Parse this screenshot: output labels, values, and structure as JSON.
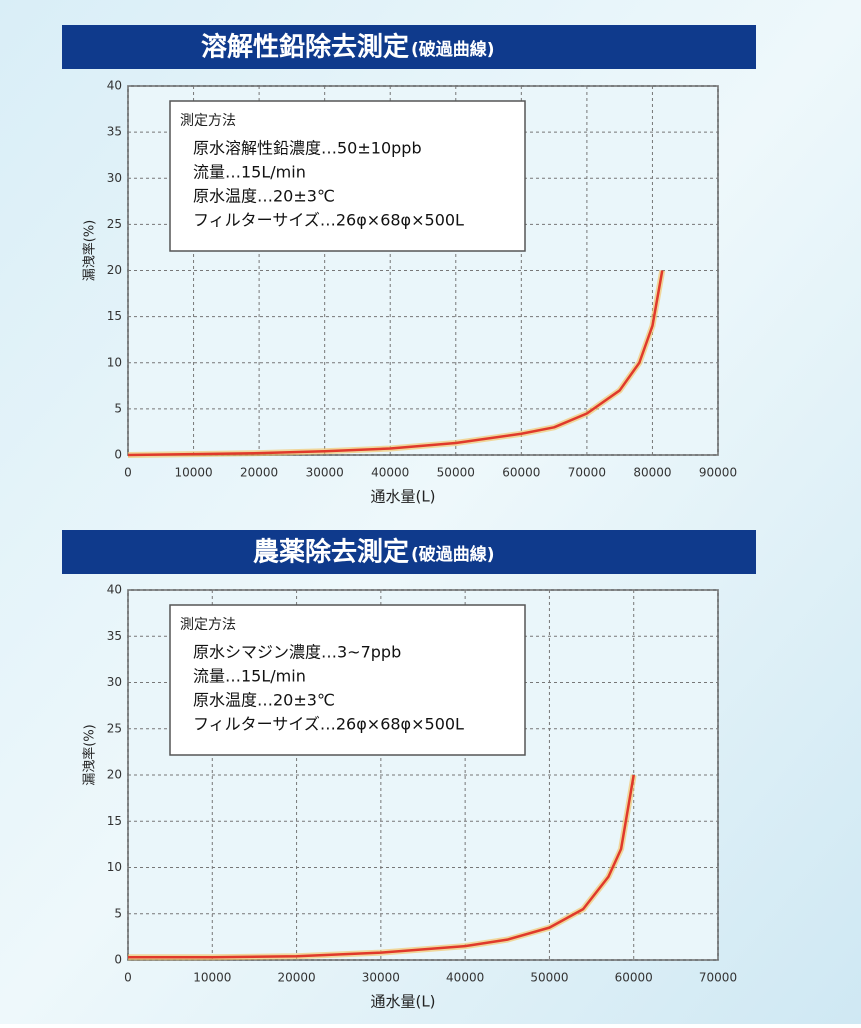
{
  "chart_data": [
    {
      "type": "line",
      "title": "溶解性鉛除去測定",
      "subtitle": "(破過曲線)",
      "xlabel": "通水量(L)",
      "ylabel": "漏洩率(%)",
      "method_title": "測定方法",
      "method_lines": [
        "原水溶解性鉛濃度…50±10ppb",
        "流量…15L/min",
        "原水温度…20±3℃",
        "フィルターサイズ…26φ×68φ×500L"
      ],
      "x": [
        0,
        10000,
        20000,
        30000,
        40000,
        50000,
        60000,
        65000,
        70000,
        75000,
        78000,
        80000,
        81500
      ],
      "series": [
        {
          "color": "#e0392b",
          "values": [
            0,
            0.1,
            0.2,
            0.4,
            0.7,
            1.3,
            2.3,
            3,
            4.5,
            7,
            10,
            14,
            20
          ]
        }
      ],
      "xlim": [
        0,
        90000
      ],
      "xticks": [
        0,
        10000,
        20000,
        30000,
        40000,
        50000,
        60000,
        70000,
        80000,
        90000
      ],
      "ylim": [
        0,
        40
      ],
      "yticks": [
        0,
        5,
        10,
        15,
        20,
        25,
        30,
        35,
        40
      ],
      "grid": true
    },
    {
      "type": "line",
      "title": "農薬除去測定",
      "subtitle": "(破過曲線)",
      "xlabel": "通水量(L)",
      "ylabel": "漏洩率(%)",
      "method_title": "測定方法",
      "method_lines": [
        "原水シマジン濃度…3~7ppb",
        "流量…15L/min",
        "原水温度…20±3℃",
        "フィルターサイズ…26φ×68φ×500L"
      ],
      "x": [
        0,
        10000,
        20000,
        30000,
        40000,
        45000,
        50000,
        54000,
        57000,
        58500,
        60000
      ],
      "series": [
        {
          "color": "#e0392b",
          "values": [
            0.3,
            0.3,
            0.4,
            0.8,
            1.5,
            2.2,
            3.5,
            5.5,
            9,
            12,
            20
          ]
        }
      ],
      "xlim": [
        0,
        70000
      ],
      "xticks": [
        0,
        10000,
        20000,
        30000,
        40000,
        50000,
        60000,
        70000
      ],
      "ylim": [
        0,
        40
      ],
      "yticks": [
        0,
        5,
        10,
        15,
        20,
        25,
        30,
        35,
        40
      ],
      "grid": true
    }
  ]
}
